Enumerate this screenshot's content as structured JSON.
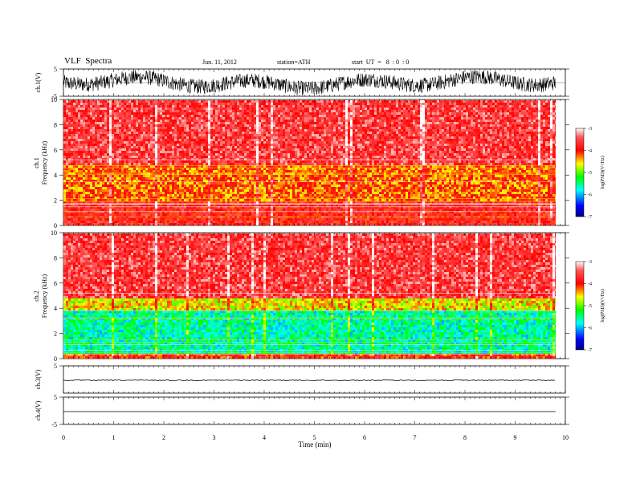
{
  "header": {
    "title": "VLF  Spectra",
    "date": "Jun. 11, 2012",
    "station": "station=ATH",
    "start": "start  UT  =   8  : 0  : 0"
  },
  "chart_data": [
    {
      "type": "line",
      "name": "ch1-waveform",
      "ylabel": "ch.1(V)",
      "ylim": [
        -5,
        5
      ],
      "y_ticks": [
        5,
        -5
      ],
      "description_values": "dense VLF waveform, envelope ~ +4.5 to -4.5 V"
    },
    {
      "type": "heatmap",
      "name": "ch1-spectrogram",
      "ylabel": "ch.1\nFrequency (kHz)",
      "ylabel_line1": "ch.1",
      "ylabel_line2": "Frequency (kHz)",
      "ylim": [
        0,
        10
      ],
      "y_ticks": [
        0,
        2,
        4,
        6,
        8,
        10
      ],
      "colorbar": {
        "label": "log(PSD)(V²/Hz)",
        "ticks": [
          -3,
          -4,
          -5,
          -6,
          -7
        ],
        "range": [
          -7,
          -3
        ]
      },
      "bands": [
        {
          "from_khz": 0.0,
          "to_khz": 2.0,
          "level": -3.8
        },
        {
          "from_khz": 2.0,
          "to_khz": 5.0,
          "level": -4.2
        },
        {
          "from_khz": 5.0,
          "to_khz": 10.0,
          "level": -3.6
        }
      ]
    },
    {
      "type": "heatmap",
      "name": "ch2-spectrogram",
      "ylabel_line1": "ch.2",
      "ylabel_line2": "Frequency (kHz)",
      "ylim": [
        0,
        10
      ],
      "y_ticks": [
        0,
        2,
        4,
        6,
        8,
        10
      ],
      "colorbar": {
        "label": "log(PSD)(V²/Hz)",
        "ticks": [
          -3,
          -4,
          -5,
          -6,
          -7
        ],
        "range": [
          -7,
          -3
        ]
      },
      "bands": [
        {
          "from_khz": 0.0,
          "to_khz": 0.5,
          "level": -4.0
        },
        {
          "from_khz": 0.5,
          "to_khz": 4.0,
          "level": -5.6
        },
        {
          "from_khz": 4.0,
          "to_khz": 5.0,
          "level": -4.6
        },
        {
          "from_khz": 5.0,
          "to_khz": 10.0,
          "level": -3.6
        }
      ]
    },
    {
      "type": "line",
      "name": "ch3-waveform",
      "ylabel": "ch.3(V)",
      "ylim": [
        -5,
        5
      ],
      "y_ticks": [
        5
      ],
      "value": 0
    },
    {
      "type": "line",
      "name": "ch4-waveform",
      "ylabel": "ch.4(V)",
      "ylim": [
        -5,
        5
      ],
      "y_ticks": [
        5,
        -5
      ],
      "value": 0
    }
  ],
  "x_axis": {
    "label": "Time  (min)",
    "range": [
      0,
      10
    ],
    "ticks": [
      "0",
      "1",
      "2",
      "3",
      "4",
      "5",
      "6",
      "7",
      "8",
      "9",
      "10"
    ],
    "data_end_min": 9.8
  }
}
